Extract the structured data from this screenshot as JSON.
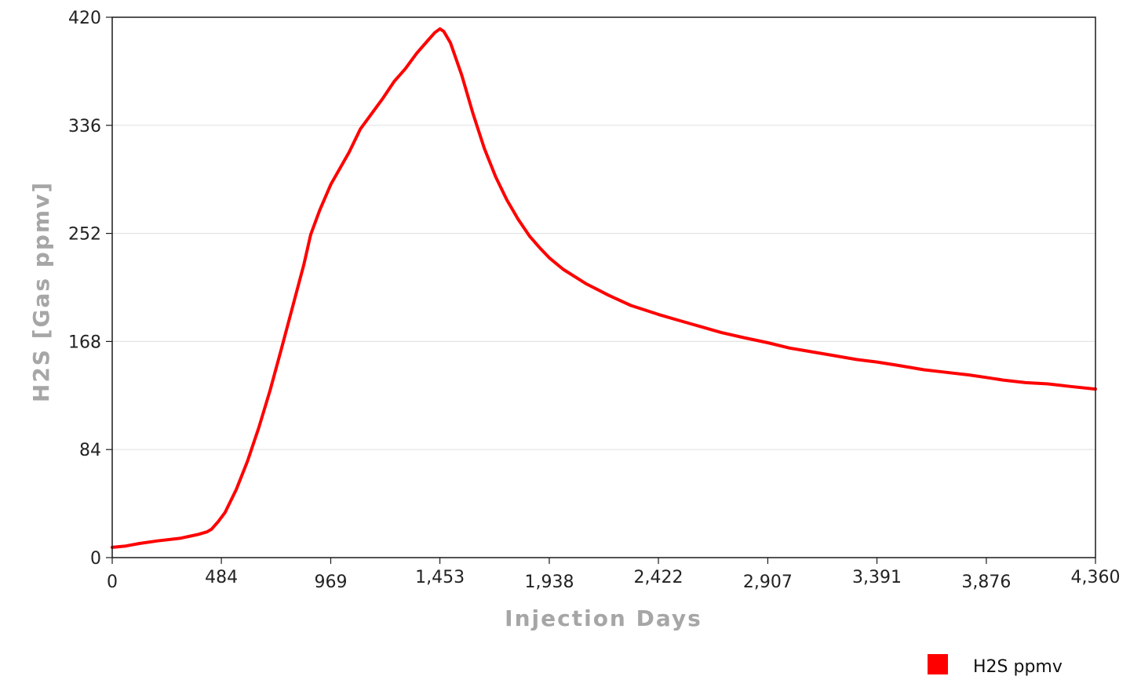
{
  "chart_data": {
    "type": "line",
    "title": "",
    "xlabel": "Injection Days",
    "ylabel": "H2S [Gas ppmv]",
    "xlim": [
      0,
      4360
    ],
    "ylim": [
      0,
      420
    ],
    "x_ticks": [
      0,
      484,
      969,
      1453,
      1938,
      2422,
      2907,
      3391,
      3876,
      4360
    ],
    "x_tick_labels": [
      "0",
      "484",
      "969",
      "1,453",
      "1,938",
      "2,422",
      "2,907",
      "3,391",
      "3,876",
      "4,360"
    ],
    "y_ticks": [
      0,
      84,
      168,
      252,
      336,
      420
    ],
    "y_tick_labels": [
      "0",
      "84",
      "168",
      "252",
      "336",
      "420"
    ],
    "grid": "horizontal",
    "legend_position": "bottom-right",
    "series": [
      {
        "name": "H2S ppmv",
        "color": "#ff0000",
        "x": [
          0,
          60,
          120,
          200,
          300,
          380,
          420,
          440,
          470,
          500,
          550,
          600,
          650,
          700,
          750,
          800,
          850,
          880,
          920,
          969,
          1050,
          1100,
          1200,
          1250,
          1300,
          1350,
          1400,
          1430,
          1453,
          1470,
          1500,
          1550,
          1600,
          1650,
          1700,
          1750,
          1800,
          1850,
          1900,
          1938,
          2000,
          2100,
          2200,
          2300,
          2422,
          2500,
          2600,
          2700,
          2800,
          2907,
          3000,
          3100,
          3200,
          3300,
          3391,
          3500,
          3600,
          3700,
          3800,
          3876,
          3950,
          4050,
          4150,
          4250,
          4360
        ],
        "values": [
          8,
          9,
          11,
          13,
          15,
          18,
          20,
          22,
          28,
          35,
          53,
          75,
          101,
          130,
          162,
          195,
          228,
          251,
          270,
          290,
          315,
          333,
          357,
          370,
          380,
          392,
          402,
          408,
          411,
          409,
          400,
          375,
          345,
          318,
          296,
          278,
          263,
          250,
          240,
          233,
          224,
          213,
          204,
          196,
          189,
          185,
          180,
          175,
          171,
          167,
          163,
          160,
          157,
          154,
          152,
          149,
          146,
          144,
          142,
          140,
          138,
          136,
          135,
          133,
          131
        ]
      }
    ]
  }
}
